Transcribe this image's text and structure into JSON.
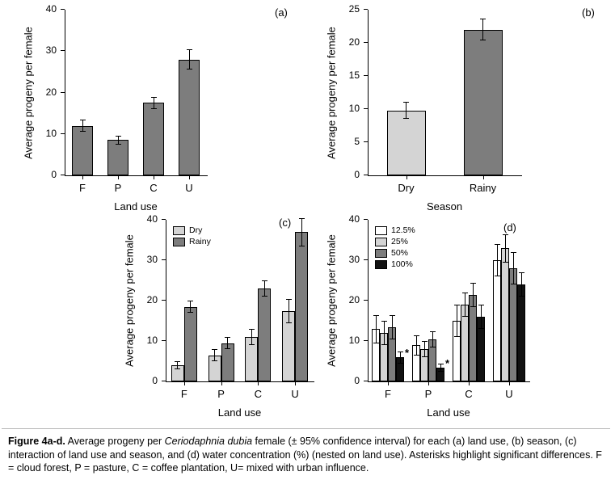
{
  "caption": {
    "label": "Figure 4a-d.",
    "text_before_species": " Average progeny per ",
    "species": "Ceriodaphnia dubia",
    "text_after_species": " female (± 95% confidence interval) for each (a) land use, (b) season, (c) interaction of land use and season, and (d) water concentration (%) (nested on land use). Asterisks highlight significant differences. F = cloud forest, P = pasture, C = coffee plantation, U= mixed with urban influence."
  },
  "colors": {
    "bar_dark_gray": "#7d7d7d",
    "bar_light_gray": "#d4d4d4",
    "bar_white": "#ffffff",
    "bar_black": "#121212",
    "axis": "#000000"
  },
  "chart_data": [
    {
      "type": "bar",
      "panel_label": "(a)",
      "xlabel": "Land use",
      "ylabel": "Average progeny per female",
      "ylim": [
        0,
        40
      ],
      "yticks": [
        0,
        10,
        20,
        30,
        40
      ],
      "categories": [
        "F",
        "P",
        "C",
        "U"
      ],
      "legend": {
        "show": false
      },
      "series": [
        {
          "name": "",
          "color": "#7d7d7d",
          "values": [
            12,
            8.5,
            17.5,
            28
          ],
          "errors": [
            1.5,
            1,
            1.5,
            2.5
          ]
        }
      ]
    },
    {
      "type": "bar",
      "panel_label": "(b)",
      "xlabel": "Season",
      "ylabel": "Average progeny per female",
      "ylim": [
        0,
        25
      ],
      "yticks": [
        0,
        5,
        10,
        15,
        20,
        25
      ],
      "categories": [
        "Dry",
        "Rainy"
      ],
      "legend": {
        "show": false
      },
      "series": [
        {
          "name": "",
          "colors": [
            "#d4d4d4",
            "#7d7d7d"
          ],
          "values": [
            9.8,
            22
          ],
          "errors": [
            1.3,
            1.6
          ]
        }
      ]
    },
    {
      "type": "bar",
      "panel_label": "(c)",
      "xlabel": "Land use",
      "ylabel": "Average progeny per female",
      "ylim": [
        0,
        40
      ],
      "yticks": [
        0,
        10,
        20,
        30,
        40
      ],
      "categories": [
        "F",
        "P",
        "C",
        "U"
      ],
      "legend": {
        "show": true,
        "position": "top-left"
      },
      "series": [
        {
          "name": "Dry",
          "color": "#d4d4d4",
          "values": [
            4,
            6.5,
            11,
            17.5
          ],
          "errors": [
            1,
            1.5,
            2,
            3
          ]
        },
        {
          "name": "Rainy",
          "color": "#7d7d7d",
          "values": [
            18.5,
            9.5,
            23,
            37
          ],
          "errors": [
            1.5,
            1.5,
            2,
            3.5
          ]
        }
      ]
    },
    {
      "type": "bar",
      "panel_label": "(d)",
      "xlabel": "Land use",
      "ylabel": "Average progeny per female",
      "ylim": [
        0,
        40
      ],
      "yticks": [
        0,
        10,
        20,
        30,
        40
      ],
      "categories": [
        "F",
        "P",
        "C",
        "U"
      ],
      "legend": {
        "show": true,
        "position": "top-left"
      },
      "series": [
        {
          "name": "12.5%",
          "color": "#ffffff",
          "values": [
            13,
            9,
            15,
            30
          ],
          "errors": [
            3.5,
            2.5,
            4,
            4
          ]
        },
        {
          "name": "25%",
          "color": "#d4d4d4",
          "values": [
            12,
            8,
            19,
            33
          ],
          "errors": [
            3,
            2,
            3,
            3.5
          ]
        },
        {
          "name": "50%",
          "color": "#7d7d7d",
          "values": [
            13.5,
            10.5,
            21.5,
            28
          ],
          "errors": [
            3,
            2,
            3,
            4
          ]
        },
        {
          "name": "100%",
          "color": "#121212",
          "values": [
            6,
            3.5,
            16,
            24
          ],
          "errors": [
            1.5,
            1,
            3,
            3
          ],
          "sig": [
            true,
            true,
            false,
            false
          ]
        }
      ]
    }
  ]
}
